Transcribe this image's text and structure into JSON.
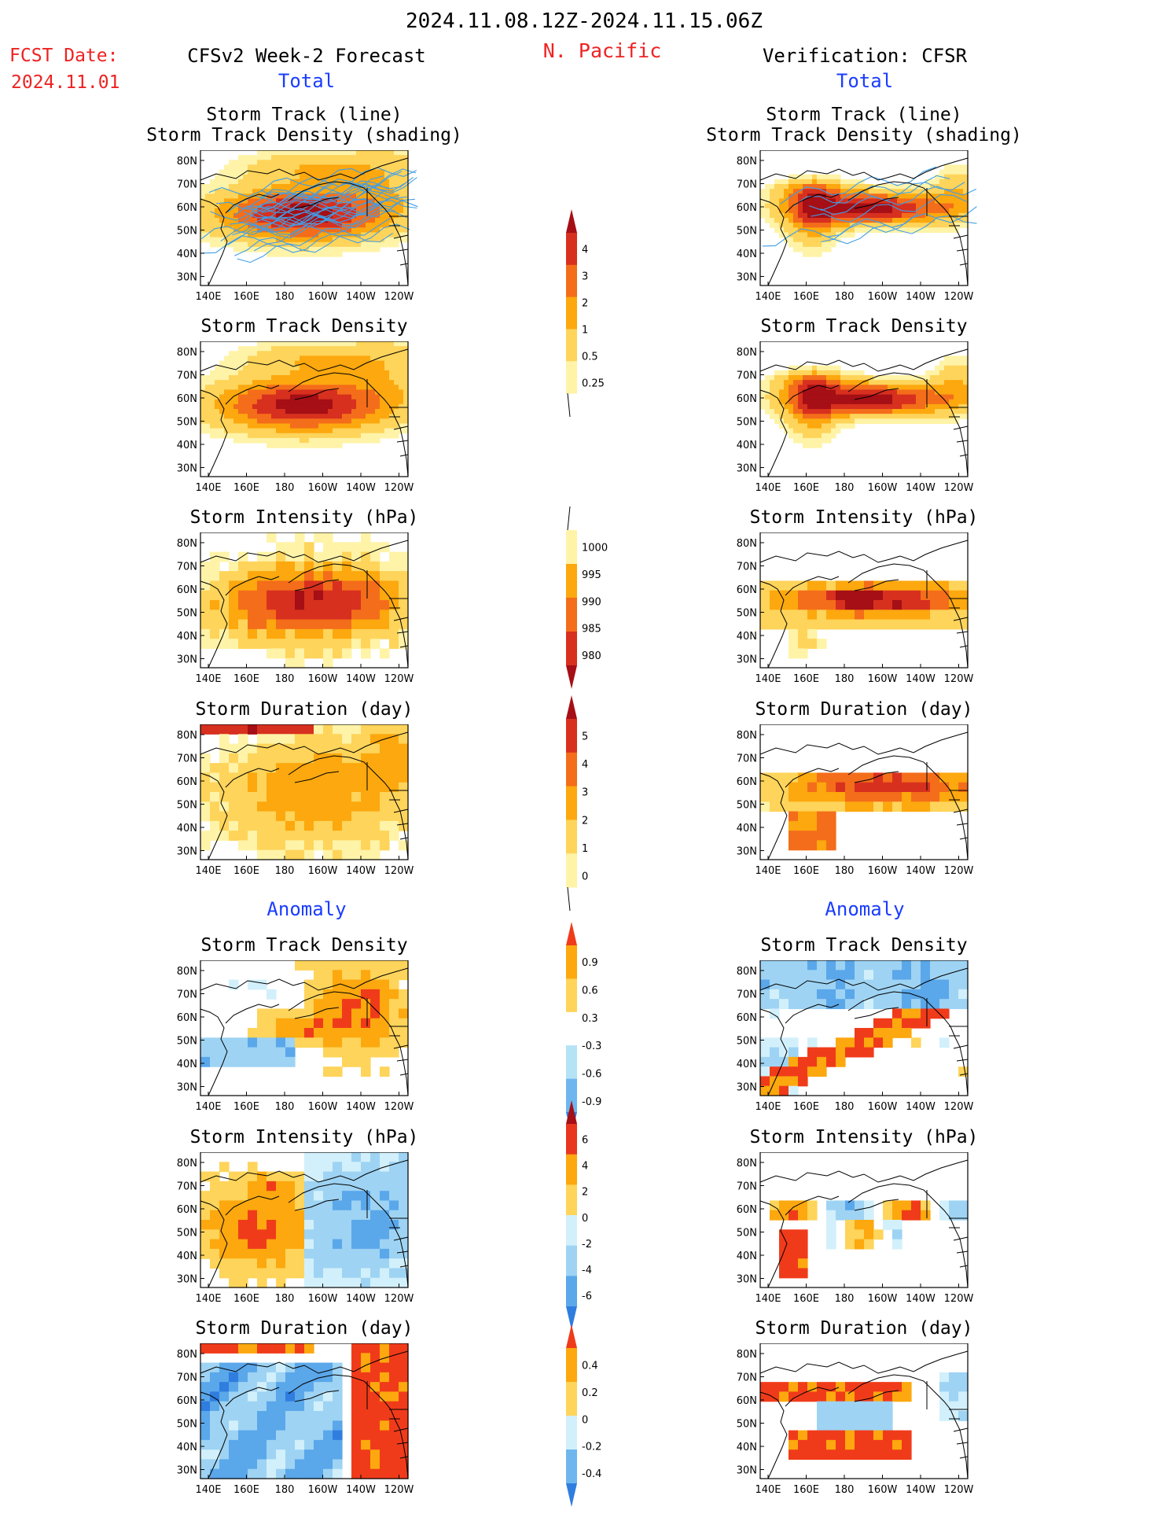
{
  "header": {
    "date_range": "2024.11.08.12Z-2024.11.15.06Z",
    "fcst_label": "FCST Date:",
    "fcst_date": "2024.11.01",
    "region": "N. Pacific",
    "left_title": "CFSv2 Week-2 Forecast",
    "right_title": "Verification: CFSR",
    "total_label": "Total",
    "anomaly_label": "Anomaly"
  },
  "map_axes": {
    "lon_ticks": [
      "140E",
      "160E",
      "180",
      "160W",
      "140W",
      "120W"
    ],
    "lat_ticks": [
      "80N",
      "70N",
      "60N",
      "50N",
      "40N",
      "30N"
    ]
  },
  "panels": [
    {
      "id": "fc-track",
      "title1": "Storm Track (line)",
      "title2": "Storm Track Density (shading)"
    },
    {
      "id": "vf-track",
      "title1": "Storm Track (line)",
      "title2": "Storm Track Density (shading)"
    },
    {
      "id": "fc-density",
      "title1": "Storm Track Density"
    },
    {
      "id": "vf-density",
      "title1": "Storm Track Density"
    },
    {
      "id": "fc-intensity",
      "title1": "Storm Intensity (hPa)"
    },
    {
      "id": "vf-intensity",
      "title1": "Storm Intensity (hPa)"
    },
    {
      "id": "fc-duration",
      "title1": "Storm Duration (day)"
    },
    {
      "id": "vf-duration",
      "title1": "Storm Duration (day)"
    },
    {
      "id": "fc-anom-density",
      "title1": "Storm Track Density"
    },
    {
      "id": "vf-anom-density",
      "title1": "Storm Track Density"
    },
    {
      "id": "fc-anom-intensity",
      "title1": "Storm Intensity (hPa)"
    },
    {
      "id": "vf-anom-intensity",
      "title1": "Storm Intensity (hPa)"
    },
    {
      "id": "fc-anom-duration",
      "title1": "Storm Duration (day)"
    },
    {
      "id": "vf-anom-duration",
      "title1": "Storm Duration (day)"
    }
  ],
  "colorbars": {
    "density": {
      "labels": [
        "4",
        "3",
        "2",
        "1",
        "0.5",
        "0.25"
      ],
      "colors": [
        "#a50f15",
        "#d7301f",
        "#f46d1a",
        "#fca80e",
        "#fed45a",
        "#fff3a8"
      ]
    },
    "intensity": {
      "labels": [
        "1000",
        "995",
        "990",
        "985",
        "980"
      ],
      "colors": [
        "#fff3a8",
        "#fca80e",
        "#f46d1a",
        "#d7301f",
        "#a50f15"
      ]
    },
    "duration": {
      "labels": [
        "5",
        "4",
        "3",
        "2",
        "1",
        "0"
      ],
      "colors": [
        "#a50f15",
        "#d7301f",
        "#f46d1a",
        "#fca80e",
        "#fed45a",
        "#fff3a8"
      ]
    },
    "anom_density": {
      "labels": [
        "0.9",
        "0.6",
        "0.3",
        "-0.3",
        "-0.6",
        "-0.9"
      ],
      "colors": [
        "#f03b1a",
        "#fca80e",
        "#fed45a",
        "#ffffff",
        "#b3e3f5",
        "#6fb6ef",
        "#2f7ddf"
      ]
    },
    "anom_intensity": {
      "labels": [
        "6",
        "4",
        "2",
        "0",
        "-2",
        "-4",
        "-6"
      ],
      "colors": [
        "#a50f15",
        "#e8361f",
        "#fca80e",
        "#fed45a",
        "#d2f0fb",
        "#9ed3f3",
        "#5aa7ea",
        "#2f7ddf"
      ]
    },
    "anom_duration": {
      "labels": [
        "0.4",
        "0.2",
        "0",
        "-0.2",
        "-0.4"
      ],
      "colors": [
        "#f03b1a",
        "#fca80e",
        "#fed45a",
        "#d2f0fb",
        "#6fb6ef",
        "#2f7ddf"
      ]
    }
  }
}
